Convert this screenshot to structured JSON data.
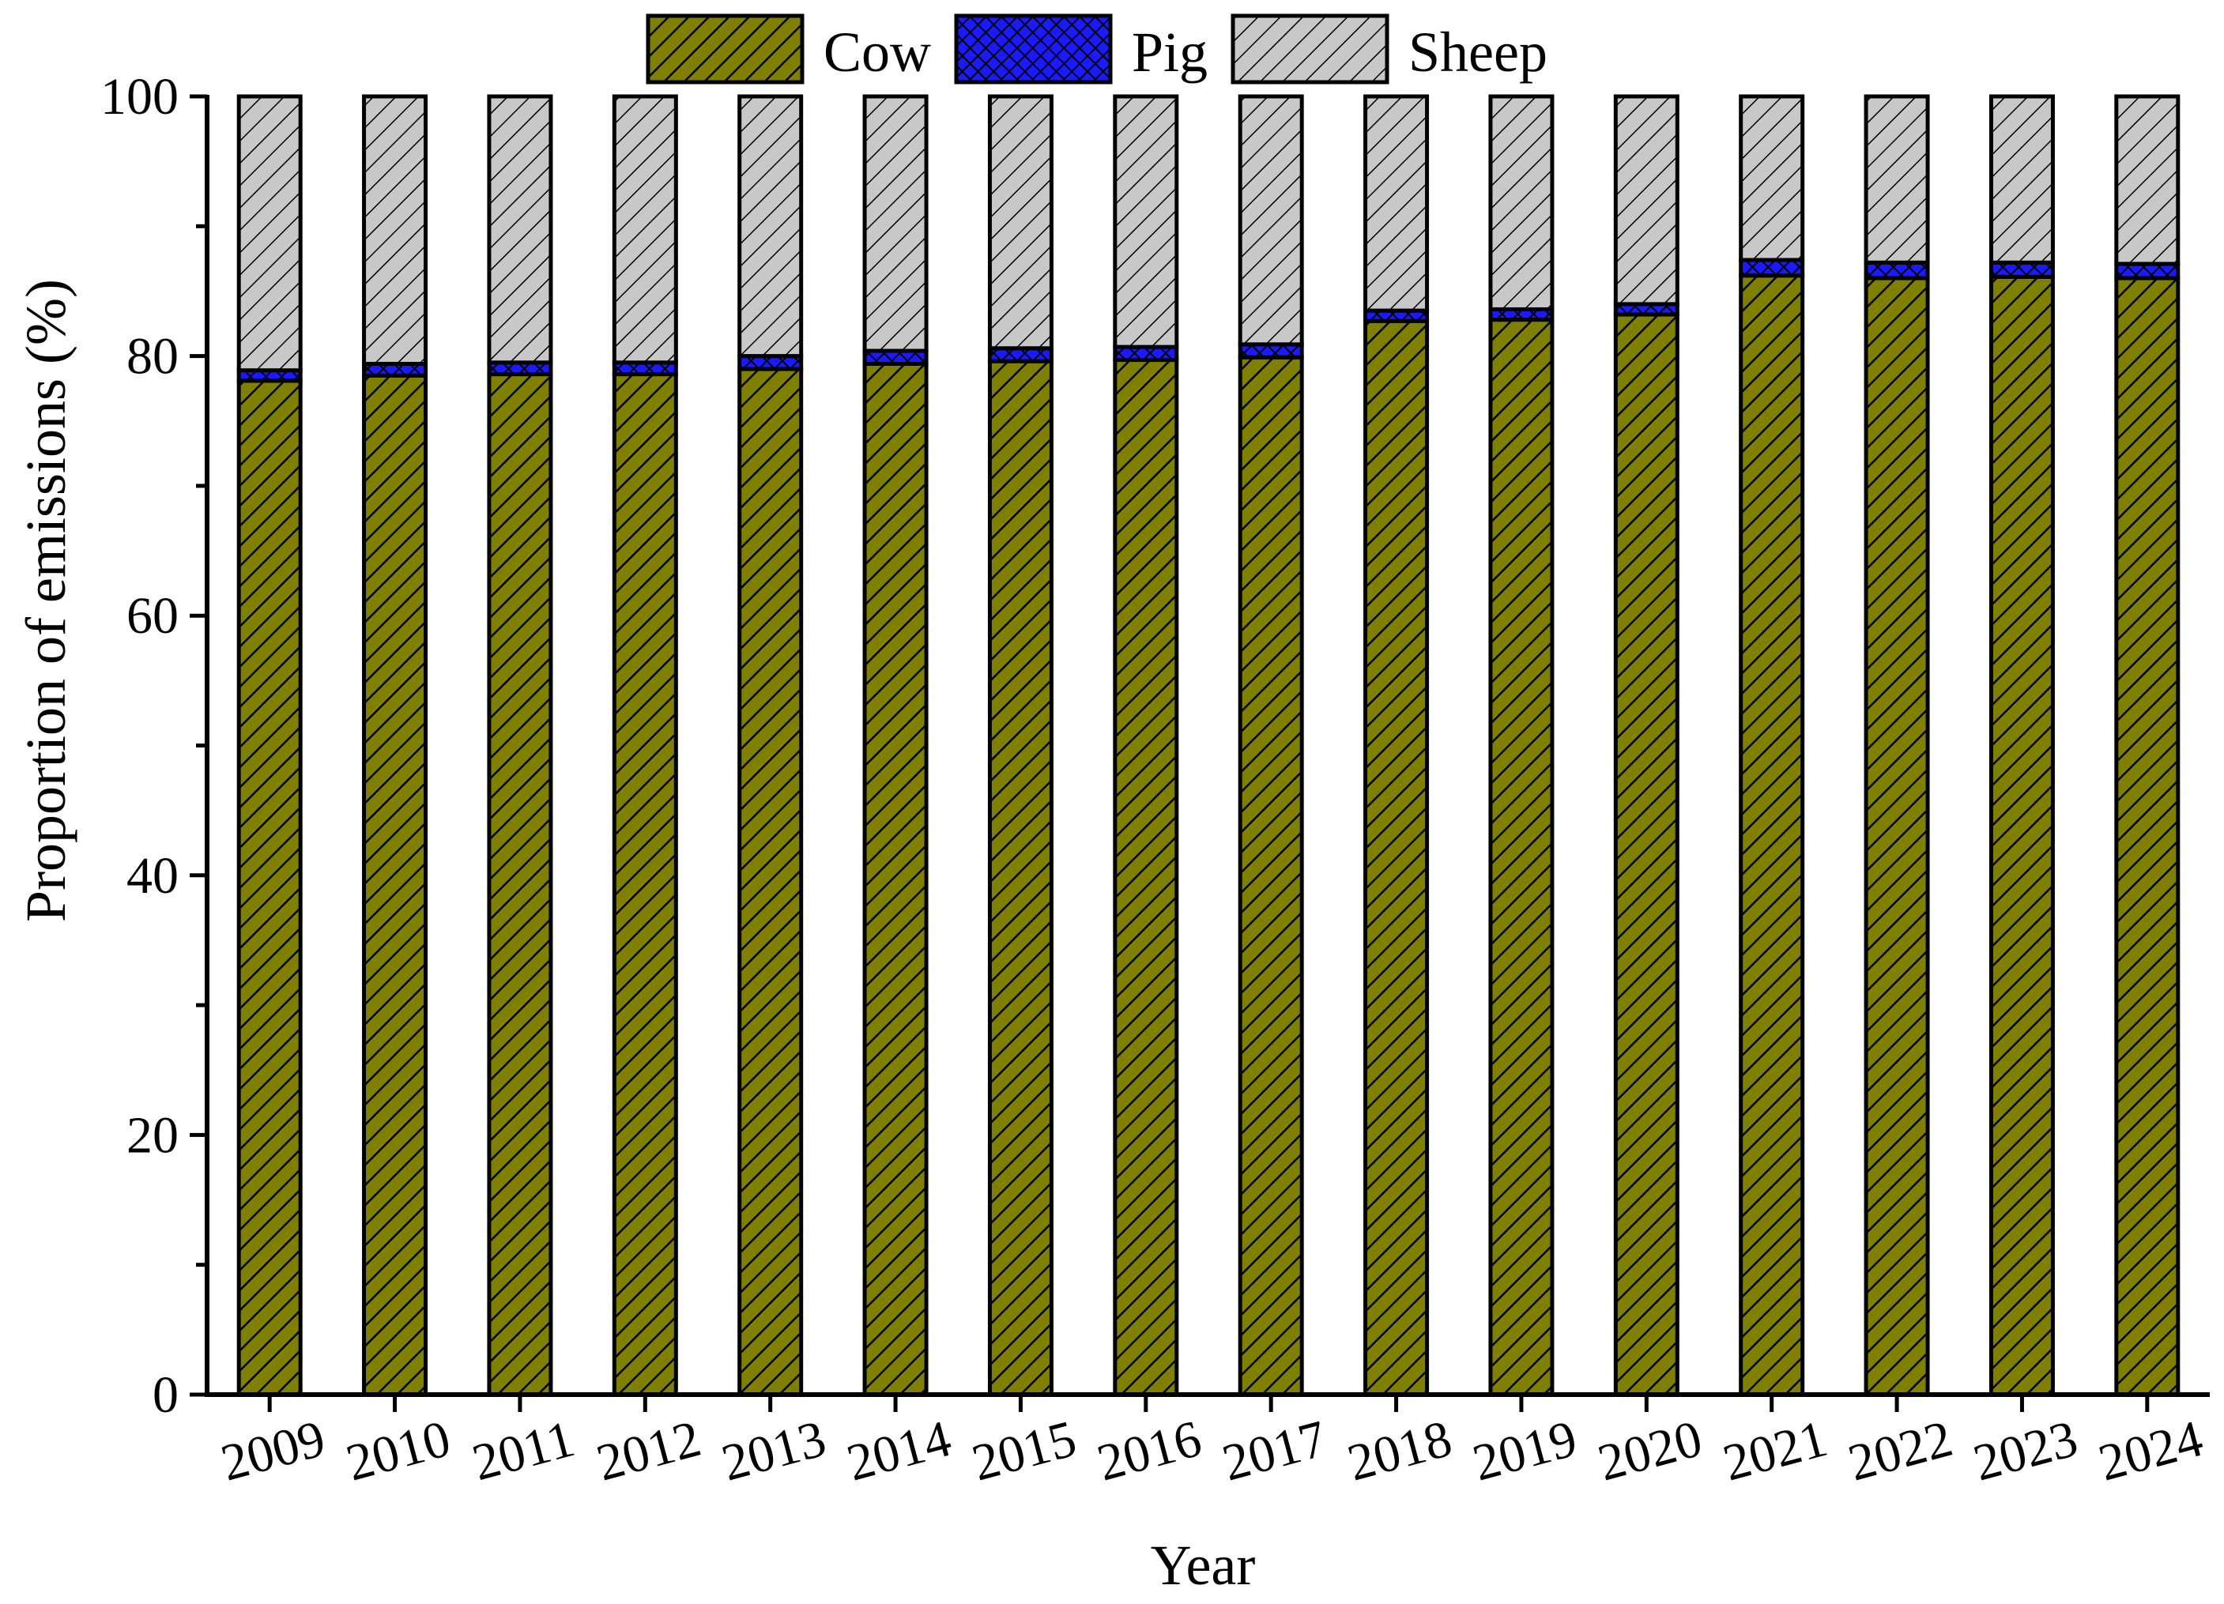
{
  "chart_data": {
    "type": "bar",
    "stacked": true,
    "title": "",
    "xlabel": "Year",
    "ylabel": "Proportion of emissions (%)",
    "ylim": [
      0,
      100
    ],
    "yticks": [
      "0",
      "20",
      "40",
      "60",
      "80",
      "100"
    ],
    "grid": false,
    "legend_position": "top",
    "categories": [
      "2009",
      "2010",
      "2011",
      "2012",
      "2013",
      "2014",
      "2015",
      "2016",
      "2017",
      "2018",
      "2019",
      "2020",
      "2021",
      "2022",
      "2023",
      "2024"
    ],
    "series": [
      {
        "name": "Cow",
        "color": "#7f7f00",
        "pattern": "diagonal-hatch",
        "values": [
          78.1,
          78.5,
          78.6,
          78.6,
          79.0,
          79.4,
          79.6,
          79.7,
          79.9,
          82.7,
          82.8,
          83.2,
          86.2,
          86.0,
          86.1,
          86.0
        ]
      },
      {
        "name": "Pig",
        "color": "#1a1aff",
        "pattern": "crosshatch",
        "values": [
          0.8,
          0.9,
          0.9,
          0.9,
          1.0,
          1.0,
          1.0,
          1.0,
          1.0,
          0.8,
          0.8,
          0.8,
          1.2,
          1.2,
          1.1,
          1.1
        ]
      },
      {
        "name": "Sheep",
        "color": "#c0c0c0",
        "pattern": "diagonal-hatch",
        "values": [
          21.1,
          20.6,
          20.5,
          20.5,
          20.0,
          19.6,
          19.4,
          19.3,
          19.1,
          16.5,
          16.4,
          16.0,
          12.6,
          12.8,
          12.8,
          12.9
        ]
      }
    ]
  }
}
